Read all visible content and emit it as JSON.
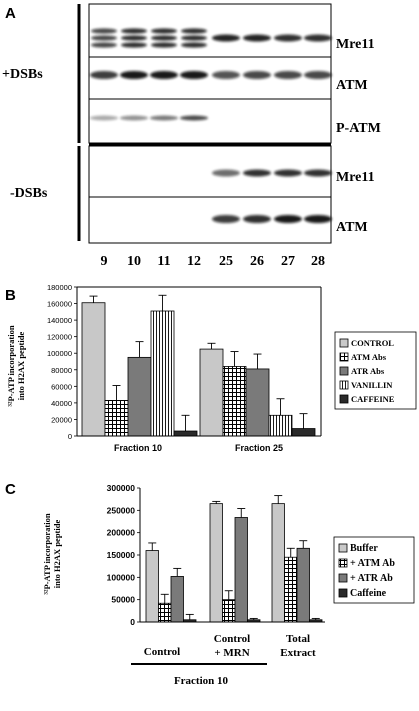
{
  "panel_a": {
    "label": "A",
    "group_top": "+DSBs",
    "group_bottom": "-DSBs",
    "rows": [
      {
        "name": "Mre11",
        "group": "+DSBs"
      },
      {
        "name": "ATM",
        "group": "+DSBs"
      },
      {
        "name": "P-ATM",
        "group": "+DSBs"
      },
      {
        "name": "Mre11",
        "group": "-DSBs"
      },
      {
        "name": "ATM",
        "group": "-DSBs"
      }
    ],
    "lanes": [
      "9",
      "10",
      "11",
      "12",
      "25",
      "26",
      "27",
      "28"
    ]
  },
  "panel_b": {
    "label": "B",
    "ylabel_line1": "³²P-ATP incorporation",
    "ylabel_line2": "into H2AX peptide",
    "yticks": [
      "0",
      "20000",
      "40000",
      "60000",
      "80000",
      "100000",
      "120000",
      "140000",
      "160000",
      "180000"
    ],
    "legend": [
      "CONTROL",
      "ATM Abs",
      "ATR Abs",
      "VANILLIN",
      "CAFFEINE"
    ]
  },
  "panel_c": {
    "label": "C",
    "ylabel_line1": "³²P-ATP incorporation",
    "ylabel_line2": "into H2AX peptide",
    "yticks": [
      "0",
      "50000",
      "100000",
      "150000",
      "200000",
      "250000",
      "300000"
    ],
    "legend": [
      "Buffer",
      "+ ATM Ab",
      "+ ATR Ab",
      "Caffeine"
    ],
    "group_labels": [
      [
        "Control"
      ],
      [
        "Control",
        "+ MRN"
      ],
      [
        "Total",
        "Extract"
      ]
    ],
    "bottom_label": "Fraction 10"
  },
  "chart_data": [
    {
      "type": "bar",
      "categories": [
        "Fraction 10",
        "Fraction 25"
      ],
      "ylim": [
        0,
        180000
      ],
      "series": [
        {
          "name": "CONTROL",
          "values": [
            161000,
            105000
          ],
          "errors": [
            8000,
            7000
          ],
          "color": "#c8c8c8",
          "pattern": "solid"
        },
        {
          "name": "ATM Abs",
          "values": [
            43000,
            84000
          ],
          "errors": [
            18000,
            18000
          ],
          "color": "#ffffff",
          "pattern": "grid"
        },
        {
          "name": "ATR Abs",
          "values": [
            95000,
            81000
          ],
          "errors": [
            19000,
            18000
          ],
          "color": "#7a7a7a",
          "pattern": "solid"
        },
        {
          "name": "VANILLIN",
          "values": [
            151000,
            25000
          ],
          "errors": [
            19000,
            20000
          ],
          "color": "#ffffff",
          "pattern": "vlines"
        },
        {
          "name": "CAFFEINE",
          "values": [
            6000,
            9000
          ],
          "errors": [
            19000,
            18000
          ],
          "color": "#2a2a2a",
          "pattern": "solid"
        }
      ]
    },
    {
      "type": "bar",
      "categories": [
        "Control",
        "Control + MRN",
        "Total Extract"
      ],
      "ylim": [
        0,
        300000
      ],
      "series": [
        {
          "name": "Buffer",
          "values": [
            160000,
            265000,
            265000
          ],
          "errors": [
            17000,
            5000,
            18000
          ],
          "color": "#c8c8c8",
          "pattern": "solid"
        },
        {
          "name": "+ ATM Ab",
          "values": [
            42000,
            50000,
            145000
          ],
          "errors": [
            20000,
            20000,
            20000
          ],
          "color": "#ffffff",
          "pattern": "grid"
        },
        {
          "name": "+ ATR Ab",
          "values": [
            102000,
            234000,
            165000
          ],
          "errors": [
            18000,
            20000,
            17000
          ],
          "color": "#7a7a7a",
          "pattern": "solid"
        },
        {
          "name": "Caffeine",
          "values": [
            5000,
            5000,
            5000
          ],
          "errors": [
            12000,
            3000,
            3000
          ],
          "color": "#2a2a2a",
          "pattern": "solid"
        }
      ]
    }
  ]
}
